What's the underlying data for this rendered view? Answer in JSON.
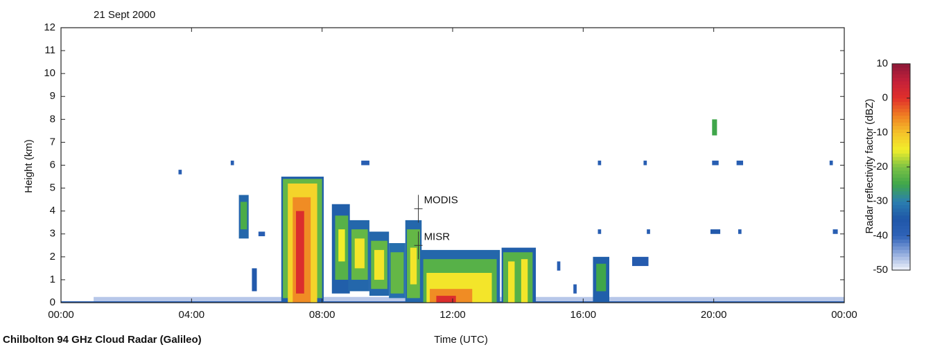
{
  "chart_data": {
    "type": "heatmap",
    "title": "21 Sept 2000",
    "caption": "Chilbolton 94 GHz Cloud Radar (Galileo)",
    "xlabel": "Time (UTC)",
    "ylabel": "Height (km)",
    "clabel": "Radar reflectivity factor (dBZ)",
    "xlim": [
      0,
      24
    ],
    "xticks": [
      {
        "value": 0,
        "label": "00:00"
      },
      {
        "value": 4,
        "label": "04:00"
      },
      {
        "value": 8,
        "label": "08:00"
      },
      {
        "value": 12,
        "label": "12:00"
      },
      {
        "value": 16,
        "label": "16:00"
      },
      {
        "value": 20,
        "label": "20:00"
      },
      {
        "value": 24,
        "label": "00:00"
      }
    ],
    "ylim": [
      0,
      12
    ],
    "yticks": [
      0,
      1,
      2,
      3,
      4,
      5,
      6,
      7,
      8,
      9,
      10,
      11,
      12
    ],
    "clim": [
      -50,
      10
    ],
    "cticks": [
      -50,
      -40,
      -30,
      -20,
      -10,
      0,
      10
    ],
    "colormap": [
      "#f2f4fb",
      "#8fa9dd",
      "#2e62b8",
      "#1f57a8",
      "#2b7fb0",
      "#3fa64a",
      "#7cc244",
      "#f2ee2a",
      "#f5c22a",
      "#ef7f22",
      "#e1302a",
      "#c4203a",
      "#8c1838"
    ],
    "annotations": [
      {
        "text": "MODIS",
        "x": 10.95,
        "y": 4.1
      },
      {
        "text": "MISR",
        "x": 10.95,
        "y": 2.5
      }
    ],
    "cells": [
      [
        1,
        24,
        0,
        0.25,
        -47
      ],
      [
        0,
        24,
        0,
        0.06,
        -38
      ],
      [
        5.45,
        5.75,
        2.8,
        4.7,
        -33
      ],
      [
        5.5,
        5.7,
        3.2,
        4.4,
        -24
      ],
      [
        5.85,
        6.0,
        0.5,
        1.5,
        -36
      ],
      [
        6.75,
        8.05,
        0,
        5.5,
        -34
      ],
      [
        6.8,
        8.0,
        0.2,
        5.4,
        -22
      ],
      [
        6.95,
        7.85,
        0,
        5.2,
        -12
      ],
      [
        7.1,
        7.65,
        0,
        4.6,
        -6
      ],
      [
        7.2,
        7.45,
        0.4,
        4.0,
        1
      ],
      [
        8.3,
        8.85,
        0.4,
        4.3,
        -34
      ],
      [
        8.4,
        8.8,
        1.0,
        3.8,
        -23
      ],
      [
        8.5,
        8.7,
        1.8,
        3.2,
        -15
      ],
      [
        8.8,
        9.45,
        0.5,
        3.6,
        -33
      ],
      [
        8.9,
        9.4,
        1.0,
        3.2,
        -22
      ],
      [
        9.0,
        9.3,
        1.5,
        2.8,
        -14
      ],
      [
        9.45,
        10.05,
        0.3,
        3.1,
        -33
      ],
      [
        9.5,
        10.0,
        0.6,
        2.7,
        -22
      ],
      [
        9.6,
        9.9,
        1.0,
        2.3,
        -14
      ],
      [
        10.05,
        10.55,
        0.2,
        2.6,
        -32
      ],
      [
        10.1,
        10.5,
        0.4,
        2.2,
        -22
      ],
      [
        10.55,
        11.05,
        0,
        3.6,
        -33
      ],
      [
        10.6,
        11.0,
        0.2,
        3.2,
        -22
      ],
      [
        10.7,
        10.9,
        0.8,
        2.4,
        -14
      ],
      [
        11.0,
        13.45,
        0,
        2.3,
        -33
      ],
      [
        11.1,
        13.35,
        0,
        1.9,
        -23
      ],
      [
        11.2,
        13.2,
        0,
        1.3,
        -14
      ],
      [
        11.3,
        12.6,
        0,
        0.6,
        -6
      ],
      [
        11.5,
        12.1,
        0,
        0.3,
        1
      ],
      [
        13.5,
        14.55,
        0,
        2.4,
        -34
      ],
      [
        13.55,
        14.45,
        0,
        2.2,
        -23
      ],
      [
        13.7,
        13.9,
        0,
        1.8,
        -14
      ],
      [
        14.1,
        14.3,
        0,
        1.9,
        -14
      ],
      [
        16.3,
        16.8,
        0,
        2.0,
        -34
      ],
      [
        16.4,
        16.7,
        0.5,
        1.7,
        -25
      ],
      [
        17.5,
        18.0,
        1.6,
        2.0,
        -37
      ],
      [
        19.95,
        20.1,
        7.3,
        8.0,
        -25
      ],
      [
        3.6,
        3.7,
        5.6,
        5.8,
        -38
      ],
      [
        5.2,
        5.3,
        6.0,
        6.2,
        -38
      ],
      [
        9.2,
        9.45,
        6.0,
        6.2,
        -38
      ],
      [
        16.45,
        16.55,
        6.0,
        6.2,
        -38
      ],
      [
        17.85,
        17.95,
        6.0,
        6.2,
        -38
      ],
      [
        19.95,
        20.15,
        6.0,
        6.2,
        -38
      ],
      [
        20.7,
        20.9,
        6.0,
        6.2,
        -38
      ],
      [
        23.55,
        23.65,
        6.0,
        6.2,
        -38
      ],
      [
        16.45,
        16.55,
        3.0,
        3.2,
        -38
      ],
      [
        17.95,
        18.05,
        3.0,
        3.2,
        -38
      ],
      [
        19.9,
        20.2,
        3.0,
        3.2,
        -36
      ],
      [
        20.75,
        20.85,
        3.0,
        3.2,
        -38
      ],
      [
        23.65,
        23.8,
        3.0,
        3.2,
        -38
      ],
      [
        6.05,
        6.25,
        2.9,
        3.1,
        -38
      ],
      [
        15.2,
        15.3,
        1.4,
        1.8,
        -38
      ],
      [
        15.7,
        15.8,
        0.4,
        0.8,
        -38
      ]
    ]
  }
}
